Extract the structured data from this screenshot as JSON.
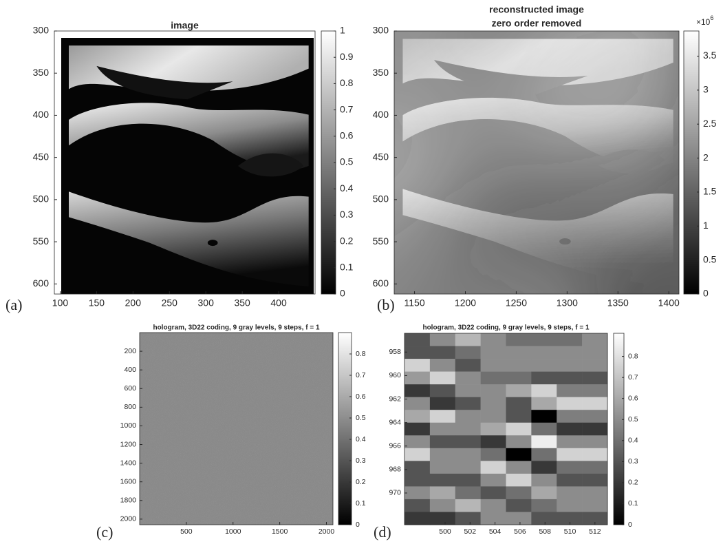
{
  "panels": [
    {
      "label": "(a)",
      "title": [
        "image"
      ],
      "xlim": [
        92,
        450
      ],
      "ylim": [
        300,
        612
      ],
      "xticks": [
        100,
        150,
        200,
        250,
        300,
        350,
        400
      ],
      "yticks": [
        300,
        350,
        400,
        450,
        500,
        550,
        600
      ],
      "colorbar": {
        "lim": [
          0,
          1
        ],
        "ticks": [
          0,
          0.1,
          0.2,
          0.3,
          0.4,
          0.5,
          0.6,
          0.7,
          0.8,
          0.9,
          1
        ]
      }
    },
    {
      "label": "(b)",
      "title": [
        "reconstructed image",
        "zero order removed"
      ],
      "xlim": [
        1130,
        1410
      ],
      "ylim": [
        300,
        612
      ],
      "xticks": [
        1150,
        1200,
        1250,
        1300,
        1350,
        1400
      ],
      "yticks": [
        300,
        350,
        400,
        450,
        500,
        550,
        600
      ],
      "colorbar": {
        "lim": [
          0,
          3.87
        ],
        "ticks": [
          0,
          0.5,
          1,
          1.5,
          2,
          2.5,
          3,
          3.5
        ],
        "multiplier": {
          "base": "×10",
          "exponent": "6"
        }
      }
    },
    {
      "label": "(c)",
      "title": [
        "hologram, 3D22 coding, 9 gray levels, 9 steps, f = 1"
      ],
      "xlim": [
        0,
        2070
      ],
      "ylim": [
        0,
        2060
      ],
      "xticks": [
        500,
        1000,
        1500,
        2000
      ],
      "yticks": [
        200,
        400,
        600,
        800,
        1000,
        1200,
        1400,
        1600,
        1800,
        2000
      ],
      "colorbar": {
        "lim": [
          0,
          0.9
        ],
        "ticks": [
          0,
          0.1,
          0.2,
          0.3,
          0.4,
          0.5,
          0.6,
          0.7,
          0.8
        ]
      }
    },
    {
      "label": "(d)",
      "title": [
        "hologram, 3D22 coding, 9 gray levels, 9 steps, f = 1"
      ],
      "xlim": [
        496.75,
        513
      ],
      "ylim": [
        956.4,
        972.7
      ],
      "xticks": [
        500,
        502,
        504,
        506,
        508,
        510,
        512
      ],
      "yticks": [
        958,
        960,
        962,
        964,
        966,
        968,
        970
      ],
      "colorbar": {
        "lim": [
          0,
          0.91
        ],
        "ticks": [
          0,
          0.1,
          0.2,
          0.3,
          0.4,
          0.5,
          0.6,
          0.7,
          0.8
        ]
      },
      "grid": [
        [
          0.3,
          0.5,
          0.65,
          0.5,
          0.4,
          0.4,
          0.4,
          0.5
        ],
        [
          0.3,
          0.3,
          0.4,
          0.5,
          0.5,
          0.5,
          0.5,
          0.5
        ],
        [
          0.75,
          0.5,
          0.3,
          0.5,
          0.5,
          0.5,
          0.5,
          0.5
        ],
        [
          0.55,
          0.75,
          0.5,
          0.4,
          0.4,
          0.3,
          0.3,
          0.3
        ],
        [
          0.2,
          0.3,
          0.5,
          0.5,
          0.6,
          0.75,
          0.45,
          0.45
        ],
        [
          0.5,
          0.2,
          0.3,
          0.5,
          0.3,
          0.6,
          0.75,
          0.75
        ],
        [
          0.6,
          0.75,
          0.5,
          0.5,
          0.3,
          0,
          0.45,
          0.45
        ],
        [
          0.2,
          0.5,
          0.5,
          0.6,
          0.75,
          0.4,
          0.2,
          0.2
        ],
        [
          0.5,
          0.3,
          0.3,
          0.2,
          0.5,
          0.85,
          0.5,
          0.5
        ],
        [
          0.75,
          0.5,
          0.5,
          0.4,
          0,
          0.4,
          0.75,
          0.75
        ],
        [
          0.3,
          0.5,
          0.5,
          0.75,
          0.5,
          0.2,
          0.4,
          0.4
        ],
        [
          0.3,
          0.3,
          0.3,
          0.5,
          0.75,
          0.5,
          0.3,
          0.3
        ],
        [
          0.5,
          0.6,
          0.4,
          0.3,
          0.4,
          0.6,
          0.5,
          0.5
        ],
        [
          0.3,
          0.5,
          0.65,
          0.5,
          0.3,
          0.4,
          0.5,
          0.5
        ],
        [
          0.2,
          0.2,
          0.3,
          0.5,
          0.5,
          0.3,
          0.3,
          0.3
        ]
      ]
    }
  ]
}
